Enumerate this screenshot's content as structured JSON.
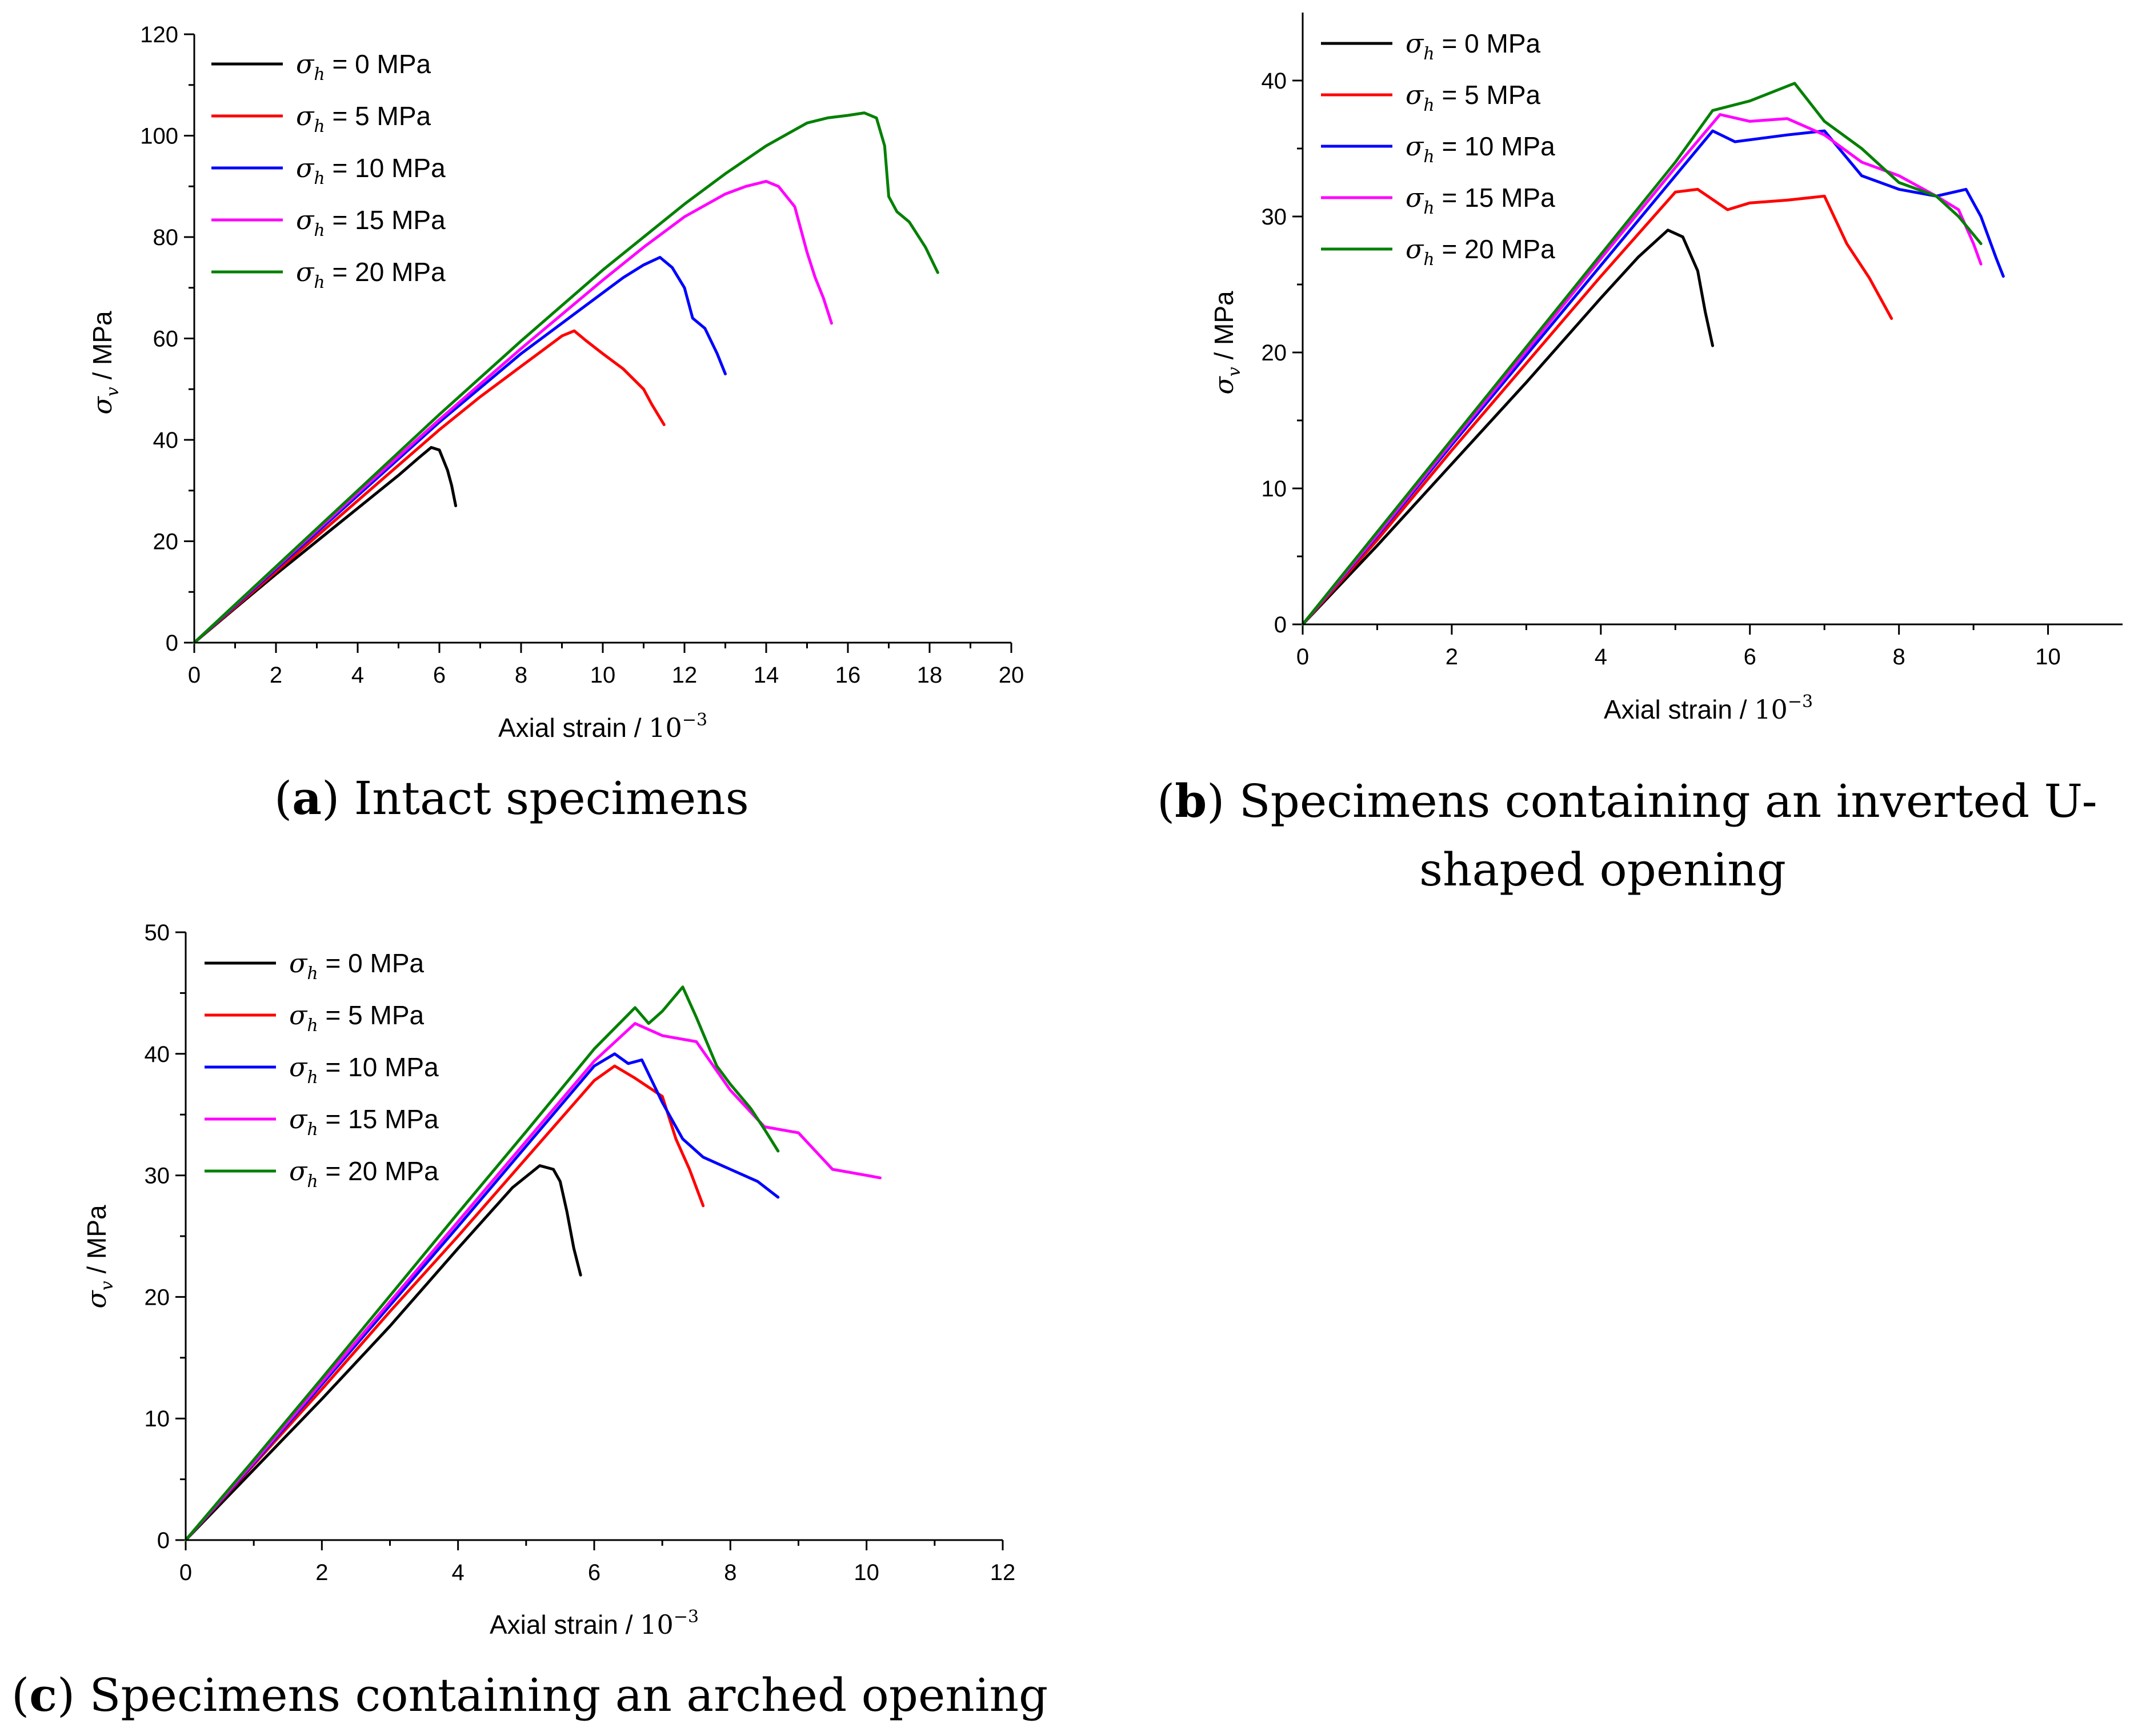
{
  "colors": {
    "black": "#000000",
    "red": "#ff0000",
    "blue": "#0000ff",
    "magenta": "#ff00ff",
    "green": "#008000"
  },
  "chart_data": [
    {
      "id": "a",
      "type": "line",
      "caption_letter": "a",
      "caption_text": "Intact specimens",
      "caption_lines": [],
      "xlabel": "Axial strain / ",
      "xlabel_unit": "10",
      "xlabel_exp": "−3",
      "ylabel_symbol": "σ",
      "ylabel_sub": "v",
      "ylabel_rest": " / MPa",
      "xlim": [
        0,
        20
      ],
      "ylim": [
        0,
        120
      ],
      "xticks": [
        0,
        2,
        4,
        6,
        8,
        10,
        12,
        14,
        16,
        18,
        20
      ],
      "yticks": [
        0,
        20,
        40,
        60,
        80,
        100,
        120
      ],
      "legend_position": "top-left",
      "series": [
        {
          "symbol": "σ",
          "sub": "h",
          "name": " = 0 MPa",
          "color": "#000000",
          "x": [
            0,
            1,
            2,
            3,
            4,
            5,
            5.5,
            5.8,
            6.0,
            6.2,
            6.3,
            6.4
          ],
          "y": [
            0,
            6.8,
            13.5,
            20,
            26.5,
            33,
            36.5,
            38.5,
            38,
            34,
            31,
            27
          ]
        },
        {
          "symbol": "σ",
          "sub": "h",
          "name": " = 5 MPa",
          "color": "#ff0000",
          "x": [
            0,
            2,
            4,
            6,
            7,
            8,
            8.5,
            9,
            9.3,
            9.6,
            10,
            10.5,
            11,
            11.2,
            11.5
          ],
          "y": [
            0,
            14,
            28,
            42,
            48.5,
            54.5,
            57.5,
            60.5,
            61.5,
            59.5,
            57,
            54,
            50,
            47,
            43
          ]
        },
        {
          "symbol": "σ",
          "sub": "h",
          "name": " = 10 MPa",
          "color": "#0000ff",
          "x": [
            0,
            2,
            4,
            6,
            8,
            9,
            10,
            10.5,
            11,
            11.4,
            11.7,
            12,
            12.2,
            12.5,
            12.8,
            13.0
          ],
          "y": [
            0,
            14.5,
            29,
            43.5,
            57,
            63,
            69,
            72,
            74.5,
            76,
            74,
            70,
            64,
            62,
            57,
            53
          ]
        },
        {
          "symbol": "σ",
          "sub": "h",
          "name": " = 15 MPa",
          "color": "#ff00ff",
          "x": [
            0,
            2,
            4,
            6,
            8,
            10,
            11,
            12,
            13,
            13.5,
            14,
            14.3,
            14.7,
            15,
            15.2,
            15.4,
            15.6
          ],
          "y": [
            0,
            14.8,
            29.5,
            44,
            58,
            71.5,
            78,
            84,
            88.5,
            90,
            91,
            90,
            86,
            77,
            72,
            68,
            63
          ]
        },
        {
          "symbol": "σ",
          "sub": "h",
          "name": " = 20 MPa",
          "color": "#008000",
          "x": [
            0,
            2,
            4,
            6,
            8,
            10,
            12,
            13,
            14,
            15,
            15.5,
            16,
            16.4,
            16.7,
            16.9,
            17.0,
            17.2,
            17.5,
            17.9,
            18.2
          ],
          "y": [
            0,
            15,
            30,
            45,
            59.5,
            73.5,
            86.5,
            92.5,
            98,
            102.5,
            103.5,
            104,
            104.5,
            103.5,
            98,
            88,
            85,
            83,
            78,
            73
          ]
        }
      ]
    },
    {
      "id": "b",
      "type": "line",
      "caption_letter": "b",
      "caption_text": "",
      "caption_lines": [
        ") Specimens containing an inverted U-",
        "shaped opening"
      ],
      "xlabel": "Axial strain / ",
      "xlabel_unit": "10",
      "xlabel_exp": "−3",
      "ylabel_symbol": "σ",
      "ylabel_sub": "v",
      "ylabel_rest": " / MPa",
      "xlim": [
        0,
        11
      ],
      "ylim": [
        0,
        45
      ],
      "xticks": [
        0,
        2,
        4,
        6,
        8,
        10
      ],
      "yticks": [
        0,
        10,
        20,
        30,
        40
      ],
      "legend_position": "top-left",
      "series": [
        {
          "symbol": "σ",
          "sub": "h",
          "name": " = 0 MPa",
          "color": "#000000",
          "x": [
            0,
            1,
            2,
            3,
            4,
            4.5,
            4.9,
            5.1,
            5.3,
            5.4,
            5.5
          ],
          "y": [
            0,
            5.8,
            11.8,
            17.8,
            24,
            27,
            29,
            28.5,
            26,
            23,
            20.5
          ]
        },
        {
          "symbol": "σ",
          "sub": "h",
          "name": " = 5 MPa",
          "color": "#ff0000",
          "x": [
            0,
            1,
            2,
            3,
            4,
            5,
            5.3,
            5.7,
            6.0,
            6.5,
            7.0,
            7.3,
            7.6,
            7.9
          ],
          "y": [
            0,
            6.2,
            12.8,
            19.2,
            25.6,
            31.8,
            32,
            30.5,
            31,
            31.2,
            31.5,
            28,
            25.5,
            22.5
          ]
        },
        {
          "symbol": "σ",
          "sub": "h",
          "name": " = 10 MPa",
          "color": "#0000ff",
          "x": [
            0,
            1,
            2,
            3,
            4,
            5,
            5.5,
            5.8,
            6.5,
            7.0,
            7.5,
            8.0,
            8.5,
            8.9,
            9.1,
            9.3,
            9.4
          ],
          "y": [
            0,
            6.5,
            13.2,
            19.8,
            26.4,
            33,
            36.3,
            35.5,
            36,
            36.3,
            33,
            32,
            31.5,
            32,
            30,
            27,
            25.6
          ]
        },
        {
          "symbol": "σ",
          "sub": "h",
          "name": " = 15 MPa",
          "color": "#ff00ff",
          "x": [
            0,
            1,
            2,
            3,
            4,
            5,
            5.6,
            6.0,
            6.5,
            7.0,
            7.5,
            8.0,
            8.5,
            8.8,
            9.0,
            9.1
          ],
          "y": [
            0,
            6.6,
            13.4,
            20.1,
            26.9,
            33.6,
            37.5,
            37,
            37.2,
            36,
            34,
            33,
            31.5,
            30.5,
            28,
            26.5
          ]
        },
        {
          "symbol": "σ",
          "sub": "h",
          "name": " = 20 MPa",
          "color": "#008000",
          "x": [
            0,
            1,
            2,
            3,
            4,
            5,
            5.5,
            6.0,
            6.6,
            7.0,
            7.5,
            8.0,
            8.5,
            8.8,
            9.1
          ],
          "y": [
            0,
            6.8,
            13.6,
            20.4,
            27.2,
            34,
            37.8,
            38.5,
            39.8,
            37,
            35,
            32.5,
            31.5,
            30,
            28
          ]
        }
      ]
    },
    {
      "id": "c",
      "type": "line",
      "caption_letter": "c",
      "caption_text": ") Specimens containing an arched opening",
      "caption_lines": [],
      "xlabel": "Axial strain / ",
      "xlabel_unit": "10",
      "xlabel_exp": "−3",
      "ylabel_symbol": "σ",
      "ylabel_sub": "v",
      "ylabel_rest": " / MPa",
      "xlim": [
        0,
        12
      ],
      "ylim": [
        0,
        50
      ],
      "xticks": [
        0,
        2,
        4,
        6,
        8,
        10,
        12
      ],
      "yticks": [
        0,
        10,
        20,
        30,
        40,
        50
      ],
      "legend_position": "top-left",
      "series": [
        {
          "symbol": "σ",
          "sub": "h",
          "name": " = 0 MPa",
          "color": "#000000",
          "x": [
            0,
            1,
            2,
            3,
            4,
            4.8,
            5.2,
            5.4,
            5.5,
            5.6,
            5.7,
            5.8
          ],
          "y": [
            0,
            5.8,
            11.6,
            17.6,
            24,
            29,
            30.8,
            30.5,
            29.5,
            27,
            24,
            21.8
          ]
        },
        {
          "symbol": "σ",
          "sub": "h",
          "name": " = 5 MPa",
          "color": "#ff0000",
          "x": [
            0,
            1,
            2,
            3,
            4,
            5,
            6,
            6.3,
            6.6,
            7.0,
            7.2,
            7.4,
            7.6
          ],
          "y": [
            0,
            6.2,
            12.4,
            18.8,
            25,
            31.4,
            37.8,
            39,
            38,
            36.5,
            33,
            30.5,
            27.5
          ]
        },
        {
          "symbol": "σ",
          "sub": "h",
          "name": " = 10 MPa",
          "color": "#0000ff",
          "x": [
            0,
            1,
            2,
            3,
            4,
            5,
            6,
            6.3,
            6.5,
            6.7,
            7.0,
            7.3,
            7.6,
            8.0,
            8.4,
            8.7
          ],
          "y": [
            0,
            6.3,
            12.8,
            19.3,
            25.8,
            32.4,
            39,
            40,
            39.2,
            39.5,
            36,
            33,
            31.5,
            30.5,
            29.5,
            28.2
          ]
        },
        {
          "symbol": "σ",
          "sub": "h",
          "name": " = 15 MPa",
          "color": "#ff00ff",
          "x": [
            0,
            1,
            2,
            3,
            4,
            5,
            6,
            6.6,
            7.0,
            7.5,
            8.0,
            8.5,
            9.0,
            9.5,
            10.0,
            10.2
          ],
          "y": [
            0,
            6.4,
            13,
            19.6,
            26.2,
            32.8,
            39.4,
            42.5,
            41.5,
            41,
            37,
            34,
            33.5,
            30.5,
            30,
            29.8
          ]
        },
        {
          "symbol": "σ",
          "sub": "h",
          "name": " = 20 MPa",
          "color": "#008000",
          "x": [
            0,
            1,
            2,
            3,
            4,
            5,
            6,
            6.6,
            6.8,
            7.0,
            7.3,
            7.5,
            7.8,
            8.0,
            8.3,
            8.5,
            8.7
          ],
          "y": [
            0,
            6.6,
            13.3,
            20.1,
            26.9,
            33.6,
            40.4,
            43.8,
            42.5,
            43.5,
            45.5,
            43,
            39,
            37.5,
            35.5,
            33.8,
            32
          ]
        }
      ]
    }
  ]
}
